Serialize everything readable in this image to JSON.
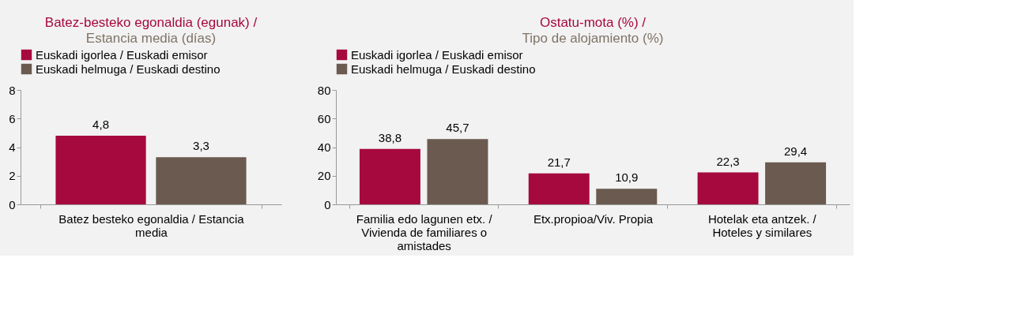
{
  "chart_data": [
    {
      "type": "bar",
      "title": "Batez-besteko egonaldia (egunak) /",
      "subtitle": "Estancia media (días)",
      "categories": [
        "Batez besteko egonaldia / Estancia media"
      ],
      "series": [
        {
          "name": "Euskadi igorlea / Euskadi emisor",
          "color": "#a6093d",
          "values": [
            4.8
          ],
          "value_labels": [
            "4,8"
          ]
        },
        {
          "name": "Euskadi helmuga / Euskadi destino",
          "color": "#6b5a4f",
          "values": [
            3.3
          ],
          "value_labels": [
            "3,3"
          ]
        }
      ],
      "ylim": [
        0,
        8
      ],
      "yticks": [
        0,
        2,
        4,
        6,
        8
      ],
      "grid": false,
      "legend": "top"
    },
    {
      "type": "bar",
      "title": "Ostatu-mota (%) /",
      "subtitle": "Tipo de alojamiento (%)",
      "categories": [
        "Familia edo lagunen etx. / Vivienda de familiares o amistades",
        "Etx.propioa/Viv. Propia",
        "Hotelak eta antzek. / Hoteles y similares"
      ],
      "series": [
        {
          "name": "Euskadi igorlea / Euskadi emisor",
          "color": "#a6093d",
          "values": [
            38.8,
            21.7,
            22.3
          ],
          "value_labels": [
            "38,8",
            "21,7",
            "22,3"
          ]
        },
        {
          "name": "Euskadi helmuga / Euskadi destino",
          "color": "#6b5a4f",
          "values": [
            45.7,
            10.9,
            29.4
          ],
          "value_labels": [
            "45,7",
            "10,9",
            "29,4"
          ]
        }
      ],
      "ylim": [
        0,
        80
      ],
      "yticks": [
        0,
        20,
        40,
        60,
        80
      ],
      "grid": false,
      "legend": "top"
    }
  ]
}
